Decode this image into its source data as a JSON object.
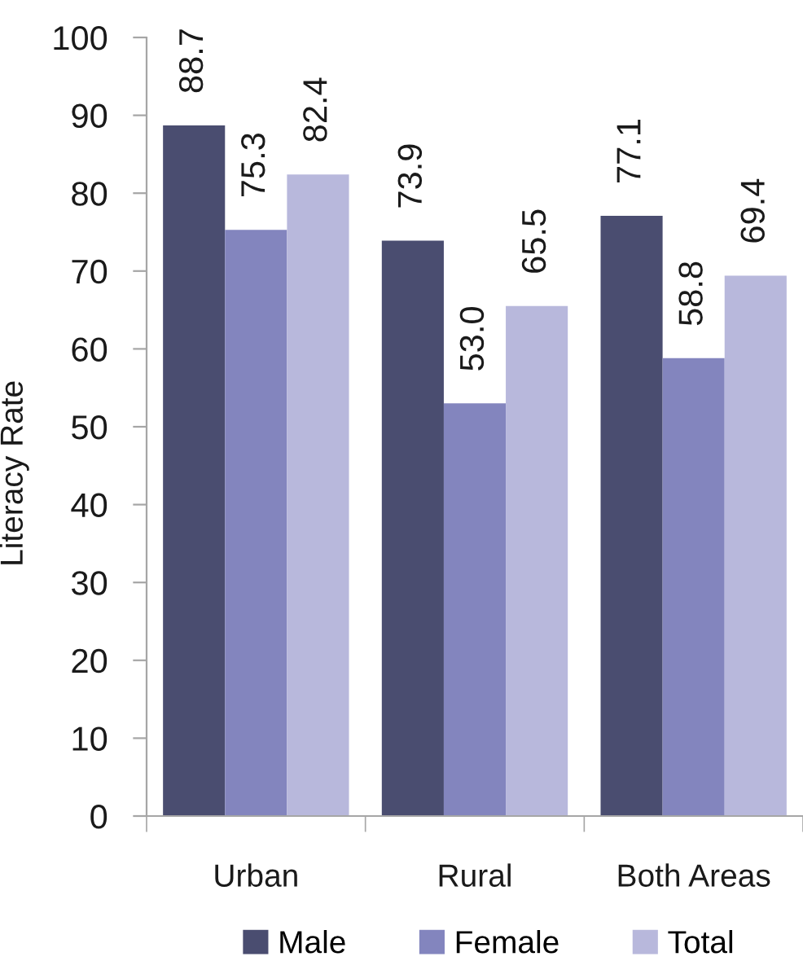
{
  "chart_data": {
    "type": "bar",
    "ylabel": "Literacy Rate",
    "categories": [
      "Urban",
      "Rural",
      "Both Areas"
    ],
    "series": [
      {
        "name": "Male",
        "color": "#4a4d70",
        "values": [
          88.7,
          73.9,
          77.1
        ],
        "value_labels": [
          "88.7",
          "73.9",
          "77.1"
        ]
      },
      {
        "name": "Female",
        "color": "#8385be",
        "values": [
          75.3,
          53.0,
          58.8
        ],
        "value_labels": [
          "75.3",
          "53.0",
          "58.8"
        ]
      },
      {
        "name": "Total",
        "color": "#b8b8dc",
        "values": [
          82.4,
          65.5,
          69.4
        ],
        "value_labels": [
          "82.4",
          "65.5",
          "69.4"
        ]
      }
    ],
    "ylim": [
      0,
      100
    ],
    "yticks": [
      0,
      10,
      20,
      30,
      40,
      50,
      60,
      70,
      80,
      90,
      100
    ],
    "legend": "bottom"
  }
}
